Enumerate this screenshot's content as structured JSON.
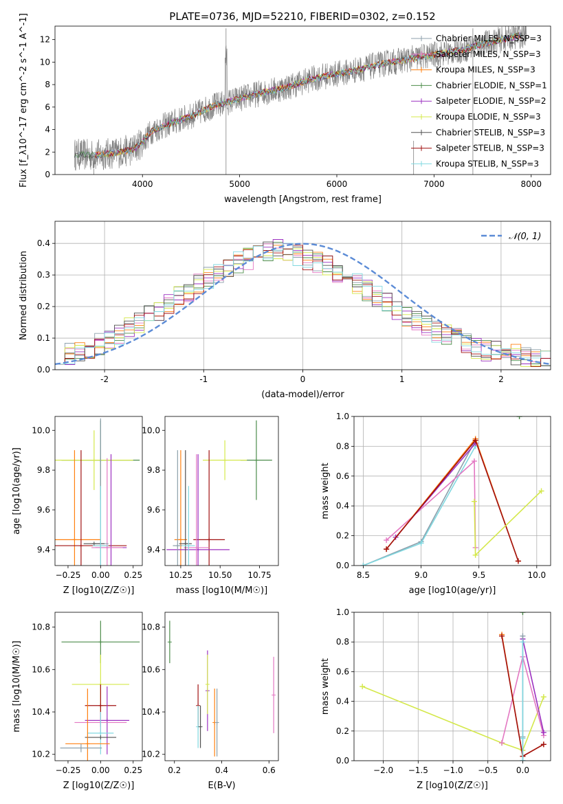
{
  "figure": {
    "title": "PLATE=0736, MJD=52210, FIBERID=0302, z=0.152"
  },
  "chart_data": [
    {
      "type": "line",
      "title": "PLATE=0736, MJD=52210, FIBERID=0302, z=0.152",
      "xlabel": "wavelength [Angstrom, rest frame]",
      "ylabel": "Flux [f_λ10^-17 erg cm^-2 s^-1 A^-1]",
      "xlim": [
        3100,
        8200
      ],
      "ylim": [
        0,
        13.2
      ],
      "xticks": [
        4000,
        5000,
        6000,
        7000,
        8000
      ],
      "yticks": [
        0,
        2,
        4,
        6,
        8,
        10,
        12
      ],
      "grid": false,
      "legend": "top-right",
      "data_series": {
        "name": "",
        "color": "#808080"
      },
      "continuum_x": [
        3300,
        3500,
        3700,
        3900,
        4000,
        4100,
        4300,
        4500,
        4700,
        4900,
        5100,
        5300,
        5500,
        5700,
        5900,
        6100,
        6300,
        6500,
        6700,
        6900,
        7100,
        7300,
        7500,
        7700,
        7900
      ],
      "continuum_y": [
        1.8,
        1.7,
        1.9,
        2.2,
        2.9,
        3.9,
        4.6,
        5.2,
        6.0,
        6.5,
        7.0,
        7.4,
        7.8,
        8.4,
        8.8,
        9.1,
        9.5,
        9.9,
        10.2,
        10.5,
        10.8,
        11.1,
        11.6,
        12.0,
        12.4
      ],
      "series": [
        {
          "name": "Chabrier MILES, N_SSP=3",
          "color": "#8c9fab"
        },
        {
          "name": "Salpeter MILES, N_SSP=3",
          "color": "#e377c2"
        },
        {
          "name": "Kroupa MILES, N_SSP=3",
          "color": "#ff7f0e"
        },
        {
          "name": "Chabrier ELODIE, N_SSP=1",
          "color": "#4c8c4a"
        },
        {
          "name": "Salpeter ELODIE, N_SSP=2",
          "color": "#9b30c0"
        },
        {
          "name": "Kroupa ELODIE, N_SSP=3",
          "color": "#d4e84a"
        },
        {
          "name": "Chabrier STELIB, N_SSP=3",
          "color": "#505050"
        },
        {
          "name": "Salpeter STELIB, N_SSP=3",
          "color": "#a01010"
        },
        {
          "name": "Kroupa STELIB, N_SSP=3",
          "color": "#80d8e0"
        }
      ]
    },
    {
      "type": "line",
      "xlabel": "(data-model)/error",
      "ylabel": "Normed distribution",
      "xlim": [
        -2.5,
        2.5
      ],
      "ylim": [
        0,
        0.47
      ],
      "xticks": [
        -2,
        -1,
        0,
        1,
        2
      ],
      "yticks": [
        0.0,
        0.1,
        0.2,
        0.3,
        0.4
      ],
      "grid": true,
      "legend": "top-right",
      "reference": {
        "name": "𝒩(0, 1)",
        "color": "#5b8bd6",
        "style": "dashed"
      },
      "hist_bins": [
        -2.5,
        -2.4,
        -2.3,
        -2.2,
        -2.1,
        -2.0,
        -1.9,
        -1.8,
        -1.7,
        -1.6,
        -1.5,
        -1.4,
        -1.3,
        -1.2,
        -1.1,
        -1.0,
        -0.9,
        -0.8,
        -0.7,
        -0.6,
        -0.5,
        -0.4,
        -0.3,
        -0.2,
        -0.1,
        0.0,
        0.1,
        0.2,
        0.3,
        0.4,
        0.5,
        0.6,
        0.7,
        0.8,
        0.9,
        1.0,
        1.1,
        1.2,
        1.3,
        1.4,
        1.5,
        1.6,
        1.7,
        1.8,
        1.9,
        2.0,
        2.1,
        2.2,
        2.3,
        2.4
      ],
      "hist_values": [
        0.05,
        0.05,
        0.06,
        0.07,
        0.08,
        0.1,
        0.11,
        0.13,
        0.15,
        0.17,
        0.19,
        0.21,
        0.23,
        0.25,
        0.27,
        0.29,
        0.31,
        0.32,
        0.34,
        0.35,
        0.36,
        0.37,
        0.38,
        0.37,
        0.36,
        0.35,
        0.34,
        0.33,
        0.31,
        0.29,
        0.27,
        0.25,
        0.23,
        0.21,
        0.19,
        0.17,
        0.16,
        0.14,
        0.12,
        0.11,
        0.1,
        0.08,
        0.07,
        0.06,
        0.06,
        0.05,
        0.05,
        0.04,
        0.04,
        0.03
      ]
    },
    {
      "type": "scatter",
      "xlabel": "Z [log10(Z/Z☉)]",
      "ylabel": "age  [log10(age/yr)]",
      "xlim": [
        -0.35,
        0.32
      ],
      "ylim": [
        9.32,
        10.07
      ],
      "xticks": [
        -0.25,
        0.0,
        0.25
      ],
      "xticklabels": [
        "−0.25",
        "0.00",
        "0.25"
      ],
      "yticks": [
        9.4,
        9.6,
        9.8,
        10.0
      ],
      "grid": false,
      "points": [
        {
          "name": "Chabrier ELODIE",
          "color": "#4c8c4a",
          "x": 0.0,
          "y": 9.85,
          "xerr": 0.3,
          "yerr": 0.2
        },
        {
          "name": "Kroupa ELODIE",
          "color": "#d4e84a",
          "x": -0.05,
          "y": 9.85,
          "xerr": 0.3,
          "yerr": 0.15
        },
        {
          "name": "Kroupa MILES",
          "color": "#ff7f0e",
          "x": -0.2,
          "y": 9.45,
          "xerr": 0.2,
          "yerr": 0.45
        },
        {
          "name": "Salpeter STELIB",
          "color": "#a01010",
          "x": -0.15,
          "y": 9.42,
          "xerr": 0.35,
          "yerr": 0.48
        },
        {
          "name": "Salpeter ELODIE",
          "color": "#9b30c0",
          "x": 0.08,
          "y": 9.41,
          "xerr": 0.12,
          "yerr": 0.47
        },
        {
          "name": "Salpeter MILES",
          "color": "#e377c2",
          "x": 0.05,
          "y": 9.41,
          "xerr": 0.12,
          "yerr": 0.45
        },
        {
          "name": "Chabrier MILES",
          "color": "#8c9fab",
          "x": 0.0,
          "y": 9.43,
          "xerr": 0.06,
          "yerr": 0.63
        },
        {
          "name": "Chabrier STELIB",
          "color": "#505050",
          "x": -0.05,
          "y": 9.43,
          "xerr": 0.08,
          "yerr": 0.0
        },
        {
          "name": "Kroupa STELIB",
          "color": "#80d8e0",
          "x": 0.0,
          "y": 9.42,
          "xerr": 0.06,
          "yerr": 0.3
        }
      ]
    },
    {
      "type": "scatter",
      "xlabel": "mass [log10(M/M☉)]",
      "xlim": [
        10.15,
        10.87
      ],
      "ylim": [
        9.32,
        10.07
      ],
      "xticks": [
        10.25,
        10.5,
        10.75
      ],
      "xticklabels": [
        "10.25",
        "10.50",
        "10.75"
      ],
      "yticks": [
        9.4,
        9.6,
        9.8,
        10.0
      ],
      "grid": false,
      "points": [
        {
          "name": "Chabrier ELODIE",
          "color": "#4c8c4a",
          "x": 10.73,
          "y": 9.85,
          "xerr": 0.1,
          "yerr": 0.2
        },
        {
          "name": "Kroupa ELODIE",
          "color": "#d4e84a",
          "x": 10.53,
          "y": 9.85,
          "xerr": 0.14,
          "yerr": 0.1
        },
        {
          "name": "Kroupa MILES",
          "color": "#ff7f0e",
          "x": 10.25,
          "y": 9.45,
          "xerr": 0.04,
          "yerr": 0.45
        },
        {
          "name": "Salpeter STELIB",
          "color": "#a01010",
          "x": 10.43,
          "y": 9.45,
          "xerr": 0.1,
          "yerr": 0.45
        },
        {
          "name": "Salpeter ELODIE",
          "color": "#9b30c0",
          "x": 10.36,
          "y": 9.4,
          "xerr": 0.2,
          "yerr": 0.48
        },
        {
          "name": "Salpeter MILES",
          "color": "#e377c2",
          "x": 10.35,
          "y": 9.41,
          "xerr": 0.08,
          "yerr": 0.47
        },
        {
          "name": "Chabrier MILES",
          "color": "#8c9fab",
          "x": 10.23,
          "y": 9.42,
          "xerr": 0.03,
          "yerr": 0.48
        },
        {
          "name": "Chabrier STELIB",
          "color": "#505050",
          "x": 10.28,
          "y": 9.43,
          "xerr": 0.04,
          "yerr": 0.47
        },
        {
          "name": "Kroupa STELIB",
          "color": "#80d8e0",
          "x": 10.3,
          "y": 9.42,
          "xerr": 0.04,
          "yerr": 0.3
        }
      ]
    },
    {
      "type": "line",
      "xlabel": "age  [log10(age/yr)]",
      "ylabel": "mass weight",
      "xlim": [
        8.42,
        10.12
      ],
      "ylim": [
        0,
        1
      ],
      "xticks": [
        8.5,
        9.0,
        9.5,
        10.0
      ],
      "yticks": [
        0.0,
        0.2,
        0.4,
        0.6,
        0.8,
        1.0
      ],
      "grid": true,
      "series": [
        {
          "name": "Chabrier MILES",
          "color": "#8c9fab",
          "x": [
            8.5,
            9.0,
            9.47
          ],
          "y": [
            0.0,
            0.16,
            0.84
          ]
        },
        {
          "name": "Kroupa STELIB",
          "color": "#80d8e0",
          "x": [
            8.5,
            9.0,
            9.47
          ],
          "y": [
            0.0,
            0.15,
            0.8
          ]
        },
        {
          "name": "Salpeter MILES",
          "color": "#e377c2",
          "x": [
            8.7,
            9.46,
            9.47
          ],
          "y": [
            0.17,
            0.7,
            0.12
          ]
        },
        {
          "name": "Salpeter ELODIE",
          "color": "#9b30c0",
          "x": [
            8.78,
            9.47
          ],
          "y": [
            0.19,
            0.82
          ]
        },
        {
          "name": "Kroupa MILES",
          "color": "#ff7f0e",
          "x": [
            8.7,
            9.47,
            9.84
          ],
          "y": [
            0.11,
            0.85,
            0.03
          ]
        },
        {
          "name": "Salpeter STELIB",
          "color": "#a01010",
          "x": [
            8.7,
            9.47,
            9.84
          ],
          "y": [
            0.11,
            0.84,
            0.03
          ]
        },
        {
          "name": "Kroupa ELODIE",
          "color": "#d4e84a",
          "x": [
            9.46,
            9.47,
            10.04
          ],
          "y": [
            0.43,
            0.07,
            0.5
          ]
        },
        {
          "name": "Chabrier ELODIE",
          "color": "#4c8c4a",
          "x": [
            9.85
          ],
          "y": [
            1.0
          ]
        }
      ]
    },
    {
      "type": "scatter",
      "xlabel": "Z [log10(Z/Z☉)]",
      "ylabel": "mass [log10(M/M☉)]",
      "xlim": [
        -0.35,
        0.32
      ],
      "ylim": [
        10.17,
        10.87
      ],
      "xticks": [
        -0.25,
        0.0,
        0.25
      ],
      "xticklabels": [
        "−0.25",
        "0.00",
        "0.25"
      ],
      "yticks": [
        10.2,
        10.4,
        10.6,
        10.8
      ],
      "grid": false,
      "points": [
        {
          "name": "Chabrier ELODIE",
          "color": "#4c8c4a",
          "x": 0.0,
          "y": 10.73,
          "xerr": 0.3,
          "yerr": 0.1
        },
        {
          "name": "Kroupa ELODIE",
          "color": "#d4e84a",
          "x": 0.0,
          "y": 10.53,
          "xerr": 0.22,
          "yerr": 0.14
        },
        {
          "name": "Salpeter STELIB",
          "color": "#a01010",
          "x": 0.0,
          "y": 10.43,
          "xerr": 0.12,
          "yerr": 0.1
        },
        {
          "name": "Salpeter ELODIE",
          "color": "#9b30c0",
          "x": 0.05,
          "y": 10.36,
          "xerr": 0.17,
          "yerr": 0.16
        },
        {
          "name": "Salpeter MILES",
          "color": "#e377c2",
          "x": 0.0,
          "y": 10.35,
          "xerr": 0.2,
          "yerr": 0.05
        },
        {
          "name": "Kroupa STELIB",
          "color": "#80d8e0",
          "x": 0.0,
          "y": 10.3,
          "xerr": 0.1,
          "yerr": 0.1
        },
        {
          "name": "Chabrier STELIB",
          "color": "#505050",
          "x": 0.0,
          "y": 10.28,
          "xerr": 0.12,
          "yerr": 0.0
        },
        {
          "name": "Kroupa MILES",
          "color": "#ff7f0e",
          "x": -0.1,
          "y": 10.25,
          "xerr": 0.17,
          "yerr": 0.26
        },
        {
          "name": "Chabrier MILES",
          "color": "#8c9fab",
          "x": -0.15,
          "y": 10.23,
          "xerr": 0.16,
          "yerr": 0.02
        }
      ]
    },
    {
      "type": "scatter",
      "xlabel": "E(B-V)",
      "xlim": [
        0.16,
        0.64
      ],
      "ylim": [
        10.17,
        10.87
      ],
      "xticks": [
        0.2,
        0.4,
        0.6
      ],
      "xticklabels": [
        "0.2",
        "0.4",
        "0.6"
      ],
      "yticks": [
        10.2,
        10.4,
        10.6,
        10.8
      ],
      "grid": false,
      "points": [
        {
          "name": "Chabrier ELODIE",
          "color": "#4c8c4a",
          "x": 0.18,
          "y": 10.73,
          "xerr": 0.0,
          "yerr": 0.1
        },
        {
          "name": "Salpeter STELIB",
          "color": "#a01010",
          "x": 0.3,
          "y": 10.43,
          "xerr": 0.0,
          "yerr": 0.1
        },
        {
          "name": "Kroupa STELIB",
          "color": "#80d8e0",
          "x": 0.3,
          "y": 10.33,
          "xerr": 0.0,
          "yerr": 0.1
        },
        {
          "name": "Chabrier STELIB",
          "color": "#505050",
          "x": 0.31,
          "y": 10.33,
          "xerr": 0.0,
          "yerr": 0.1
        },
        {
          "name": "Salpeter ELODIE",
          "color": "#9b30c0",
          "x": 0.34,
          "y": 10.5,
          "xerr": 0.0,
          "yerr": 0.19
        },
        {
          "name": "Kroupa ELODIE",
          "color": "#d4e84a",
          "x": 0.34,
          "y": 10.53,
          "xerr": 0.0,
          "yerr": 0.14
        },
        {
          "name": "Kroupa MILES",
          "color": "#ff7f0e",
          "x": 0.37,
          "y": 10.35,
          "xerr": 0.0,
          "yerr": 0.16
        },
        {
          "name": "Chabrier MILES",
          "color": "#8c9fab",
          "x": 0.38,
          "y": 10.35,
          "xerr": 0.0,
          "yerr": 0.16
        },
        {
          "name": "Salpeter MILES",
          "color": "#e377c2",
          "x": 0.62,
          "y": 10.48,
          "xerr": 0.0,
          "yerr": 0.18
        }
      ]
    },
    {
      "type": "line",
      "xlabel": "Z [log10(Z/Z☉)]",
      "ylabel": "mass weight",
      "xlim": [
        -2.42,
        0.4
      ],
      "ylim": [
        0,
        1
      ],
      "xticks": [
        -2.0,
        -1.5,
        -1.0,
        -0.5,
        0.0
      ],
      "xticklabels": [
        "−2.0",
        "−1.5",
        "−1.0",
        "−0.5",
        "0.0"
      ],
      "yticks": [
        0.0,
        0.2,
        0.4,
        0.6,
        0.8,
        1.0
      ],
      "grid": true,
      "series": [
        {
          "name": "Kroupa ELODIE",
          "color": "#d4e84a",
          "x": [
            -2.3,
            -0.3,
            0.0,
            0.3
          ],
          "y": [
            0.5,
            0.12,
            0.07,
            0.43
          ]
        },
        {
          "name": "Salpeter MILES",
          "color": "#e377c2",
          "x": [
            -0.3,
            0.0,
            0.3
          ],
          "y": [
            0.12,
            0.7,
            0.17
          ]
        },
        {
          "name": "Salpeter ELODIE",
          "color": "#9b30c0",
          "x": [
            0.0,
            0.3
          ],
          "y": [
            0.82,
            0.19
          ]
        },
        {
          "name": "Kroupa MILES",
          "color": "#ff7f0e",
          "x": [
            -0.3,
            0.0,
            0.3
          ],
          "y": [
            0.85,
            0.03,
            0.11
          ]
        },
        {
          "name": "Salpeter STELIB",
          "color": "#a01010",
          "x": [
            -0.3,
            0.0,
            0.3
          ],
          "y": [
            0.84,
            0.03,
            0.11
          ]
        },
        {
          "name": "Chabrier MILES",
          "color": "#8c9fab",
          "x": [
            0.0,
            0.0,
            0.0
          ],
          "y": [
            0.0,
            0.16,
            0.84
          ]
        },
        {
          "name": "Kroupa STELIB",
          "color": "#80d8e0",
          "x": [
            0.0,
            0.0,
            0.0
          ],
          "y": [
            0.0,
            0.15,
            0.8
          ]
        },
        {
          "name": "Chabrier ELODIE",
          "color": "#4c8c4a",
          "x": [
            0.0
          ],
          "y": [
            1.0
          ]
        }
      ]
    }
  ]
}
